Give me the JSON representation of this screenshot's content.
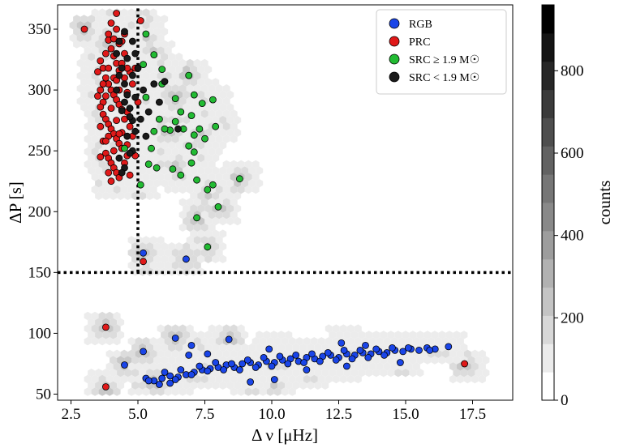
{
  "chart_data": {
    "type": "scatter",
    "title": "",
    "xlabel": "Δ ν [μHz]",
    "ylabel": "ΔP [s]",
    "xlim": [
      2.0,
      19.0
    ],
    "ylim": [
      45,
      370
    ],
    "xticks": [
      2.5,
      5.0,
      7.5,
      10.0,
      12.5,
      15.0,
      17.5
    ],
    "xtick_labels": [
      "2.5",
      "5.0",
      "7.5",
      "10.0",
      "12.5",
      "15.0",
      "17.5"
    ],
    "yticks": [
      50,
      100,
      150,
      200,
      250,
      300,
      350
    ],
    "ytick_labels": [
      "50",
      "100",
      "150",
      "200",
      "250",
      "300",
      "350"
    ],
    "grid": false,
    "legend_position": "top-right",
    "reference_lines": [
      {
        "orientation": "horizontal",
        "value": 150,
        "style": "dotted"
      },
      {
        "orientation": "vertical",
        "value": 5.0,
        "ymin": 150,
        "style": "dotted"
      }
    ],
    "colorbar": {
      "label": "counts",
      "ticks": [
        0,
        200,
        400,
        600,
        800
      ],
      "tick_labels": [
        "0",
        "200",
        "400",
        "600",
        "800"
      ],
      "max": 960,
      "levels": 14
    },
    "series": [
      {
        "name": "RGB",
        "color": "#1a45e8",
        "points": [
          [
            5.6,
            61
          ],
          [
            5.9,
            63
          ],
          [
            6.2,
            65
          ],
          [
            6.5,
            64
          ],
          [
            6.8,
            66
          ],
          [
            7.1,
            68
          ],
          [
            7.4,
            70
          ],
          [
            7.7,
            71
          ],
          [
            8.0,
            72
          ],
          [
            8.3,
            74
          ],
          [
            8.6,
            72
          ],
          [
            8.9,
            75
          ],
          [
            9.2,
            76
          ],
          [
            9.5,
            74
          ],
          [
            9.8,
            77
          ],
          [
            10.1,
            76
          ],
          [
            10.4,
            78
          ],
          [
            10.7,
            79
          ],
          [
            11.0,
            77
          ],
          [
            11.3,
            80
          ],
          [
            11.6,
            79
          ],
          [
            11.9,
            81
          ],
          [
            12.2,
            82
          ],
          [
            12.5,
            80
          ],
          [
            12.8,
            83
          ],
          [
            13.1,
            82
          ],
          [
            13.4,
            84
          ],
          [
            13.7,
            83
          ],
          [
            14.0,
            85
          ],
          [
            14.3,
            84
          ],
          [
            14.6,
            86
          ],
          [
            14.9,
            85
          ],
          [
            15.2,
            87
          ],
          [
            15.5,
            86
          ],
          [
            15.8,
            88
          ],
          [
            16.1,
            87
          ],
          [
            16.6,
            89
          ],
          [
            5.3,
            63
          ],
          [
            6.0,
            68
          ],
          [
            6.6,
            70
          ],
          [
            7.3,
            73
          ],
          [
            7.9,
            76
          ],
          [
            8.5,
            75
          ],
          [
            9.1,
            78
          ],
          [
            9.7,
            80
          ],
          [
            10.3,
            81
          ],
          [
            10.9,
            82
          ],
          [
            11.5,
            83
          ],
          [
            12.1,
            84
          ],
          [
            12.7,
            86
          ],
          [
            13.3,
            86
          ],
          [
            13.9,
            87
          ],
          [
            14.5,
            88
          ],
          [
            15.1,
            88
          ],
          [
            5.8,
            58
          ],
          [
            6.4,
            62
          ],
          [
            7.0,
            66
          ],
          [
            7.6,
            69
          ],
          [
            8.2,
            70
          ],
          [
            8.8,
            70
          ],
          [
            9.4,
            72
          ],
          [
            10.0,
            73
          ],
          [
            10.6,
            75
          ],
          [
            11.2,
            76
          ],
          [
            11.8,
            77
          ],
          [
            12.4,
            78
          ],
          [
            13.0,
            79
          ],
          [
            13.6,
            80
          ],
          [
            14.2,
            82
          ],
          [
            5.2,
            85
          ],
          [
            6.4,
            96
          ],
          [
            7.0,
            90
          ],
          [
            8.4,
            95
          ],
          [
            12.6,
            92
          ],
          [
            11.3,
            70
          ],
          [
            9.2,
            60
          ],
          [
            10.1,
            62
          ],
          [
            12.8,
            73
          ],
          [
            14.8,
            76
          ],
          [
            5.2,
            166
          ],
          [
            6.8,
            161
          ],
          [
            4.5,
            74
          ],
          [
            5.4,
            61
          ],
          [
            6.2,
            59
          ],
          [
            7.6,
            83
          ],
          [
            6.9,
            82
          ],
          [
            9.9,
            87
          ],
          [
            13.5,
            90
          ],
          [
            15.9,
            86
          ]
        ]
      },
      {
        "name": "PRC",
        "color": "#e01919",
        "points": [
          [
            3.9,
            341
          ],
          [
            4.0,
            334
          ],
          [
            4.1,
            328
          ],
          [
            4.2,
            322
          ],
          [
            4.3,
            316
          ],
          [
            3.8,
            310
          ],
          [
            3.9,
            305
          ],
          [
            4.0,
            300
          ],
          [
            4.1,
            296
          ],
          [
            4.2,
            292
          ],
          [
            4.3,
            288
          ],
          [
            4.4,
            284
          ],
          [
            3.7,
            280
          ],
          [
            3.8,
            276
          ],
          [
            3.9,
            272
          ],
          [
            4.0,
            268
          ],
          [
            4.1,
            264
          ],
          [
            4.2,
            260
          ],
          [
            4.3,
            256
          ],
          [
            4.4,
            252
          ],
          [
            3.8,
            248
          ],
          [
            3.9,
            244
          ],
          [
            4.0,
            240
          ],
          [
            4.1,
            236
          ],
          [
            4.2,
            232
          ],
          [
            4.3,
            228
          ],
          [
            3.6,
            324
          ],
          [
            3.7,
            318
          ],
          [
            3.6,
            300
          ],
          [
            3.7,
            290
          ],
          [
            4.5,
            330
          ],
          [
            4.5,
            310
          ],
          [
            4.6,
            298
          ],
          [
            4.6,
            282
          ],
          [
            4.7,
            270
          ],
          [
            4.7,
            315
          ],
          [
            4.8,
            305
          ],
          [
            4.4,
            340
          ],
          [
            4.5,
            346
          ],
          [
            4.2,
            350
          ],
          [
            3.5,
            315
          ],
          [
            3.5,
            295
          ],
          [
            3.6,
            270
          ],
          [
            3.7,
            258
          ],
          [
            3.6,
            245
          ],
          [
            4.0,
            355
          ],
          [
            3.9,
            318
          ],
          [
            4.1,
            310
          ],
          [
            4.3,
            300
          ],
          [
            4.0,
            285
          ],
          [
            3.8,
            295
          ],
          [
            4.2,
            275
          ],
          [
            4.4,
            265
          ],
          [
            4.6,
            255
          ],
          [
            3.9,
            262
          ],
          [
            4.1,
            250
          ],
          [
            4.0,
            225
          ],
          [
            3.9,
            232
          ],
          [
            4.5,
            240
          ],
          [
            4.7,
            230
          ],
          [
            3.0,
            350
          ],
          [
            4.2,
            363
          ],
          [
            5.1,
            357
          ],
          [
            4.9,
            318
          ],
          [
            5.0,
            290
          ],
          [
            4.8,
            262
          ],
          [
            4.9,
            246
          ],
          [
            3.7,
            305
          ],
          [
            3.8,
            330
          ],
          [
            4.3,
            338
          ],
          [
            4.1,
            342
          ],
          [
            3.9,
            346
          ],
          [
            4.4,
            322
          ],
          [
            4.6,
            318
          ],
          [
            4.2,
            308
          ],
          [
            3.6,
            286
          ],
          [
            4.5,
            276
          ],
          [
            4.3,
            264
          ],
          [
            3.8,
            258
          ],
          [
            4.6,
            246
          ],
          [
            3.8,
            105
          ],
          [
            3.8,
            56
          ],
          [
            5.2,
            159
          ],
          [
            17.2,
            75
          ]
        ]
      },
      {
        "name": "SRC ≥ 1.9 M☉",
        "color": "#22bb33",
        "points": [
          [
            5.3,
            346
          ],
          [
            5.6,
            329
          ],
          [
            5.9,
            317
          ],
          [
            5.2,
            321
          ],
          [
            6.4,
            293
          ],
          [
            6.6,
            282
          ],
          [
            6.9,
            312
          ],
          [
            7.1,
            296
          ],
          [
            7.4,
            289
          ],
          [
            7.8,
            292
          ],
          [
            7.0,
            279
          ],
          [
            7.3,
            268
          ],
          [
            7.1,
            263
          ],
          [
            7.5,
            260
          ],
          [
            7.9,
            270
          ],
          [
            6.2,
            267
          ],
          [
            5.6,
            266
          ],
          [
            5.8,
            276
          ],
          [
            6.0,
            268
          ],
          [
            5.5,
            252
          ],
          [
            5.4,
            239
          ],
          [
            5.7,
            236
          ],
          [
            6.3,
            235
          ],
          [
            6.6,
            230
          ],
          [
            7.0,
            240
          ],
          [
            7.2,
            226
          ],
          [
            7.6,
            218
          ],
          [
            7.8,
            222
          ],
          [
            8.0,
            204
          ],
          [
            7.2,
            195
          ],
          [
            7.6,
            171
          ],
          [
            8.8,
            227
          ],
          [
            5.1,
            222
          ],
          [
            4.5,
            252
          ],
          [
            5.3,
            294
          ],
          [
            6.7,
            268
          ],
          [
            6.9,
            254
          ],
          [
            7.1,
            249
          ],
          [
            5.9,
            305
          ],
          [
            6.4,
            274
          ]
        ]
      },
      {
        "name": "SRC < 1.9 M☉",
        "color": "#1a1a1a",
        "points": [
          [
            4.2,
            330
          ],
          [
            4.4,
            318
          ],
          [
            4.5,
            305
          ],
          [
            4.6,
            296
          ],
          [
            4.7,
            285
          ],
          [
            4.8,
            275
          ],
          [
            4.9,
            266
          ],
          [
            4.3,
            340
          ],
          [
            4.6,
            326
          ],
          [
            4.8,
            312
          ],
          [
            4.5,
            290
          ],
          [
            4.7,
            278
          ],
          [
            4.2,
            300
          ],
          [
            4.4,
            283
          ],
          [
            4.6,
            262
          ],
          [
            4.8,
            250
          ],
          [
            4.3,
            244
          ],
          [
            4.5,
            236
          ],
          [
            5.2,
            300
          ],
          [
            5.6,
            305
          ],
          [
            6.0,
            307
          ],
          [
            5.0,
            318
          ],
          [
            5.4,
            282
          ],
          [
            5.8,
            290
          ],
          [
            5.3,
            262
          ],
          [
            6.5,
            268
          ],
          [
            4.7,
            248
          ],
          [
            4.3,
            312
          ],
          [
            4.9,
            294
          ],
          [
            5.1,
            276
          ],
          [
            4.4,
            232
          ],
          [
            4.8,
            340
          ],
          [
            4.5,
            348
          ],
          [
            4.9,
            330
          ]
        ]
      }
    ]
  }
}
